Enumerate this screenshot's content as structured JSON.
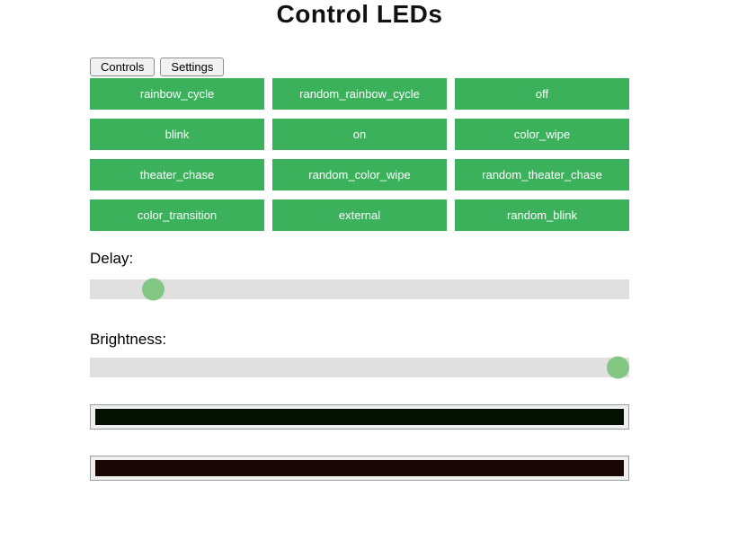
{
  "title": "Control LEDs",
  "tabs": {
    "controls": "Controls",
    "settings": "Settings"
  },
  "modes": [
    "rainbow_cycle",
    "random_rainbow_cycle",
    "off",
    "blink",
    "on",
    "color_wipe",
    "theater_chase",
    "random_color_wipe",
    "random_theater_chase",
    "color_transition",
    "external",
    "random_blink"
  ],
  "sliders": {
    "delay": {
      "label": "Delay:",
      "value_percent": 10
    },
    "brightness": {
      "label": "Brightness:",
      "value_percent": 100
    }
  },
  "color_pickers": [
    {
      "value": "#041204"
    },
    {
      "value": "#1b0606"
    }
  ],
  "colors": {
    "mode_button_bg": "#3cb15c",
    "mode_button_text": "#ffffff",
    "slider_track": "#e0e0e0",
    "slider_thumb": "#82c784"
  }
}
